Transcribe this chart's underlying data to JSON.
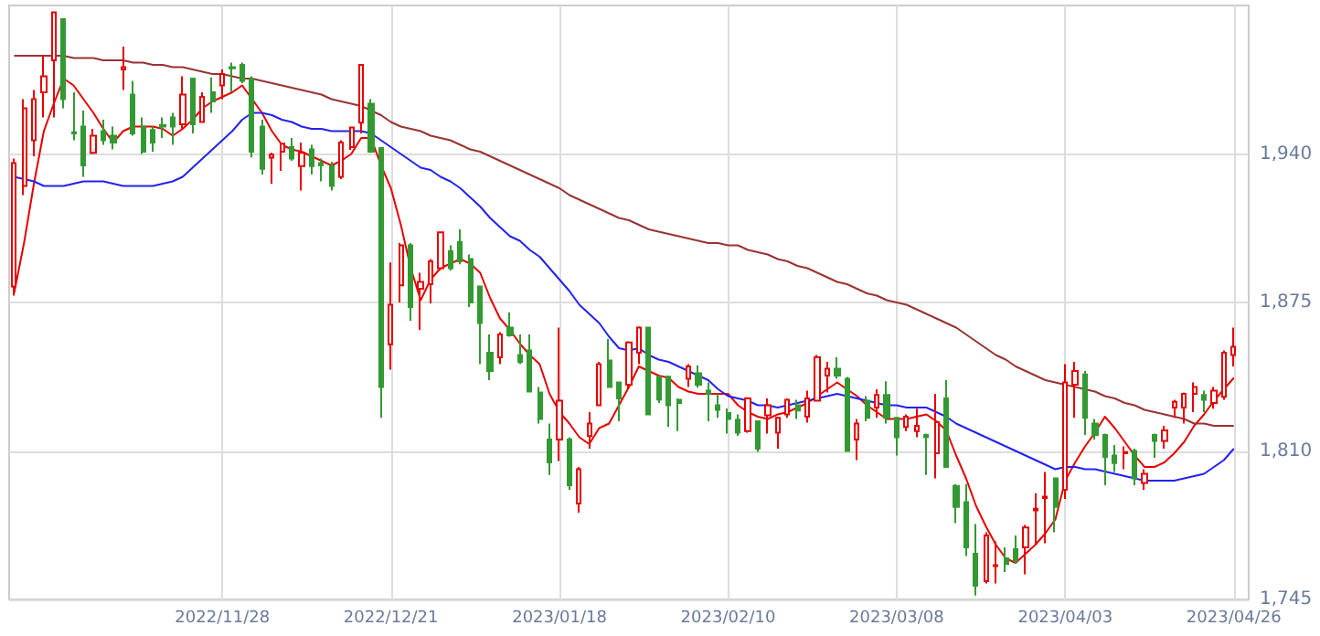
{
  "chart_data": {
    "type": "candlestick",
    "categories": [
      null,
      null,
      null,
      null,
      null,
      null,
      null,
      null,
      null,
      null,
      null,
      null,
      null,
      null,
      null,
      null,
      null,
      null,
      null,
      null,
      null,
      "2022/11/28",
      null,
      null,
      null,
      null,
      null,
      null,
      null,
      null,
      null,
      null,
      null,
      null,
      null,
      null,
      null,
      null,
      "2022/12/21",
      null,
      null,
      null,
      null,
      null,
      null,
      null,
      null,
      null,
      null,
      null,
      null,
      null,
      null,
      null,
      null,
      "2023/01/18",
      null,
      null,
      null,
      null,
      null,
      null,
      null,
      null,
      null,
      null,
      null,
      null,
      null,
      null,
      null,
      null,
      "2023/02/10",
      null,
      null,
      null,
      null,
      null,
      null,
      null,
      null,
      null,
      null,
      null,
      null,
      null,
      null,
      null,
      null,
      "2023/03/08",
      null,
      null,
      null,
      null,
      null,
      null,
      null,
      null,
      null,
      null,
      null,
      null,
      null,
      null,
      null,
      null,
      "2023/04/03",
      null,
      null,
      null,
      null,
      null,
      null,
      null,
      null,
      null,
      null,
      null,
      null,
      null,
      null,
      null,
      null,
      "2023/04/26"
    ],
    "ohlc": [
      [
        1882,
        1938,
        1878,
        1936
      ],
      [
        1926,
        1964,
        1922,
        1960
      ],
      [
        1946,
        1968,
        1939,
        1964
      ],
      [
        1967,
        1983,
        1956,
        1974
      ],
      [
        1981,
        2002,
        1956,
        2002
      ],
      [
        1999,
        1999,
        1960,
        1964
      ],
      [
        1949.5,
        1967,
        1946,
        1949
      ],
      [
        1952,
        1959,
        1930,
        1935
      ],
      [
        1940.5,
        1951,
        1940,
        1948
      ],
      [
        1950,
        1955,
        1944,
        1946
      ],
      [
        1948,
        1952,
        1942,
        1945
      ],
      [
        1977,
        1987,
        1968,
        1978
      ],
      [
        1966,
        1972,
        1948,
        1949
      ],
      [
        1952,
        1956,
        1940,
        1941
      ],
      [
        1950.5,
        1952,
        1941,
        1945
      ],
      [
        1952.7,
        1956,
        1947,
        1952
      ],
      [
        1956,
        1958,
        1944,
        1952
      ],
      [
        1953,
        1974,
        1951,
        1966
      ],
      [
        1973,
        1973,
        1949,
        1953
      ],
      [
        1954,
        1967,
        1954,
        1965
      ],
      [
        1967,
        1973.5,
        1958,
        1963
      ],
      [
        1970,
        1977,
        1964,
        1975
      ],
      [
        1978,
        1980,
        1967,
        1977.5
      ],
      [
        1979,
        1980,
        1971,
        1972
      ],
      [
        1972.7,
        1974,
        1938.5,
        1941
      ],
      [
        1952,
        1955,
        1931,
        1933.5
      ],
      [
        1938.4,
        1940.5,
        1927,
        1939.7
      ],
      [
        1941,
        1945,
        1932.6,
        1944.5
      ],
      [
        1943,
        1947,
        1937,
        1938
      ],
      [
        1934.7,
        1945,
        1924,
        1940.5
      ],
      [
        1942,
        1944,
        1931,
        1934.7
      ],
      [
        1936,
        1938,
        1928,
        1935
      ],
      [
        1934.7,
        1936.6,
        1924,
        1926
      ],
      [
        1930,
        1946,
        1929,
        1945
      ],
      [
        1943,
        1952,
        1941.8,
        1951.6
      ],
      [
        1953.7,
        1979,
        1949,
        1979
      ],
      [
        1962,
        1964,
        1940.5,
        1941
      ],
      [
        1942.6,
        1943,
        1824.5,
        1838
      ],
      [
        1856.7,
        1892.5,
        1845.6,
        1874
      ],
      [
        1882.5,
        1901,
        1875,
        1900
      ],
      [
        1900,
        1901,
        1867,
        1873
      ],
      [
        1881,
        1888,
        1863,
        1884
      ],
      [
        1883,
        1894,
        1874.6,
        1893
      ],
      [
        1890,
        1906,
        1889,
        1905.7
      ],
      [
        1897.5,
        1900,
        1889,
        1890
      ],
      [
        1901.5,
        1907,
        1891.7,
        1893
      ],
      [
        1894,
        1896,
        1873,
        1875
      ],
      [
        1882,
        1882,
        1848,
        1866
      ],
      [
        1853,
        1861,
        1841,
        1845
      ],
      [
        1851,
        1862,
        1848,
        1861
      ],
      [
        1864,
        1870.6,
        1860,
        1860.6
      ],
      [
        1852,
        1861,
        1848,
        1849
      ],
      [
        1854,
        1861,
        1836,
        1836
      ],
      [
        1835.6,
        1838,
        1822,
        1824
      ],
      [
        1815,
        1822,
        1799.5,
        1805
      ],
      [
        1815,
        1864,
        1805.6,
        1832
      ],
      [
        1815,
        1816,
        1793,
        1795
      ],
      [
        1787,
        1803,
        1783,
        1802
      ],
      [
        1816.5,
        1827,
        1811,
        1822
      ],
      [
        1830,
        1849,
        1830,
        1848
      ],
      [
        1849.6,
        1859,
        1837.7,
        1838
      ],
      [
        1840,
        1840,
        1823,
        1833
      ],
      [
        1839,
        1858,
        1837,
        1857.5
      ],
      [
        1853,
        1864.5,
        1848,
        1864
      ],
      [
        1864,
        1864,
        1826,
        1826
      ],
      [
        1842.5,
        1843,
        1831,
        1832.5
      ],
      [
        1842.5,
        1843,
        1820.5,
        1830
      ],
      [
        1832.4,
        1833,
        1818.7,
        1831
      ],
      [
        1841.6,
        1848,
        1838,
        1847
      ],
      [
        1844,
        1847.5,
        1837.7,
        1839
      ],
      [
        1836.4,
        1840,
        1823,
        1835
      ],
      [
        1830,
        1835,
        1824.5,
        1828
      ],
      [
        1826.6,
        1828.6,
        1817.6,
        1824
      ],
      [
        1823.7,
        1826,
        1816.6,
        1818
      ],
      [
        1818.7,
        1833.5,
        1818,
        1833
      ],
      [
        1823,
        1823,
        1809.6,
        1811
      ],
      [
        1825.6,
        1833,
        1817.6,
        1830
      ],
      [
        1818,
        1825,
        1811,
        1824.5
      ],
      [
        1826,
        1833,
        1824.5,
        1832.4
      ],
      [
        1830,
        1832.4,
        1824,
        1827.7
      ],
      [
        1825,
        1836.4,
        1822.4,
        1833
      ],
      [
        1832,
        1852,
        1831.6,
        1851
      ],
      [
        1843,
        1849,
        1835.6,
        1846
      ],
      [
        1846,
        1851,
        1841.6,
        1843
      ],
      [
        1841.6,
        1842.4,
        1810,
        1810
      ],
      [
        1815,
        1824,
        1806,
        1822
      ],
      [
        1832,
        1834,
        1823,
        1824.5
      ],
      [
        1829,
        1837,
        1824.5,
        1834.5
      ],
      [
        1834.5,
        1840.5,
        1822,
        1824.5
      ],
      [
        1824.5,
        1824.5,
        1808,
        1816
      ],
      [
        1820.5,
        1826,
        1818.7,
        1825
      ],
      [
        1818.7,
        1828.5,
        1816,
        1821
      ],
      [
        1817,
        1817.6,
        1799.5,
        1816
      ],
      [
        1809,
        1835,
        1798,
        1822.6
      ],
      [
        1833,
        1841,
        1803,
        1803
      ],
      [
        1794.7,
        1795.5,
        1778.4,
        1785.5
      ],
      [
        1787.6,
        1795.5,
        1764,
        1767.8
      ],
      [
        1765,
        1778,
        1746.7,
        1751
      ],
      [
        1753,
        1774.4,
        1752,
        1773
      ],
      [
        1759.6,
        1770.4,
        1752,
        1760
      ],
      [
        1763,
        1767.8,
        1757,
        1760.5
      ],
      [
        1767,
        1773,
        1760.6,
        1762
      ],
      [
        1767.8,
        1777.6,
        1756,
        1776.5
      ],
      [
        1784,
        1791.5,
        1769,
        1784.7
      ],
      [
        1789.4,
        1800.8,
        1769.6,
        1790
      ],
      [
        1798,
        1798,
        1774.4,
        1785.5
      ],
      [
        1793,
        1848,
        1789,
        1840
      ],
      [
        1839,
        1849,
        1824.5,
        1845
      ],
      [
        1843.5,
        1845,
        1817,
        1824.5
      ],
      [
        1822,
        1824,
        1815,
        1817
      ],
      [
        1817,
        1817.6,
        1795,
        1807.4
      ],
      [
        1808,
        1812.6,
        1800.8,
        1804.7
      ],
      [
        1809,
        1812,
        1802,
        1809.5
      ],
      [
        1810,
        1811,
        1795,
        1798
      ],
      [
        1796,
        1802,
        1793,
        1800
      ],
      [
        1817,
        1817.6,
        1807,
        1814.4
      ],
      [
        1814.4,
        1821,
        1811,
        1819
      ],
      [
        1829,
        1832.4,
        1824.5,
        1831.5
      ],
      [
        1829,
        1835.6,
        1822,
        1835
      ],
      [
        1835,
        1840,
        1827,
        1838
      ],
      [
        1834.5,
        1836.4,
        1827,
        1832.4
      ],
      [
        1831,
        1838,
        1828.5,
        1836.4
      ],
      [
        1833.7,
        1854,
        1832.4,
        1853
      ],
      [
        1852,
        1864,
        1847,
        1855.6
      ]
    ],
    "series": [
      {
        "type": "line",
        "color": "#e60000",
        "values": [
          1879,
          1901,
          1927,
          1950,
          1962,
          1973,
          1970,
          1964,
          1958,
          1951,
          1945,
          1950,
          1952,
          1952,
          1952,
          1951,
          1948,
          1951,
          1955,
          1960,
          1963,
          1965,
          1967,
          1970,
          1964,
          1958,
          1950,
          1944,
          1942,
          1941,
          1939,
          1937,
          1935,
          1937,
          1940,
          1947,
          1947,
          1935,
          1925,
          1909,
          1890,
          1876,
          1885,
          1890,
          1892,
          1894,
          1892,
          1888,
          1877,
          1868,
          1863,
          1857,
          1852,
          1848,
          1835,
          1827,
          1822,
          1816,
          1813,
          1820,
          1822,
          1830,
          1838,
          1847,
          1845,
          1843,
          1842,
          1838,
          1836,
          1835,
          1835,
          1835,
          1835,
          1830,
          1827,
          1825,
          1824,
          1826,
          1827,
          1829,
          1831,
          1834,
          1837,
          1840,
          1837,
          1834,
          1830,
          1827,
          1824,
          1824,
          1824,
          1825,
          1826,
          1823,
          1819,
          1808,
          1798,
          1786,
          1777,
          1769,
          1763,
          1761,
          1765,
          1769,
          1774,
          1780,
          1797,
          1805,
          1812,
          1818,
          1825,
          1820,
          1814,
          1808,
          1803,
          1803,
          1805,
          1809,
          1814,
          1821,
          1826,
          1832,
          1837,
          1842
        ]
      },
      {
        "type": "line",
        "color": "#2222ee",
        "values": [
          1930,
          1929,
          1928,
          1926,
          1926,
          1926,
          1927,
          1928,
          1928,
          1928,
          1927,
          1926,
          1926,
          1926,
          1926,
          1927,
          1928,
          1930,
          1934,
          1938,
          1942,
          1946,
          1950,
          1955,
          1958,
          1958,
          1957,
          1955,
          1954,
          1952,
          1951,
          1951,
          1950,
          1950,
          1950,
          1950,
          1949,
          1946,
          1943,
          1940,
          1937,
          1934,
          1933,
          1930,
          1928,
          1925,
          1921,
          1917,
          1912,
          1908,
          1904,
          1902,
          1898,
          1895,
          1890,
          1885,
          1880,
          1874,
          1870,
          1866,
          1860,
          1855,
          1854,
          1855,
          1852,
          1850,
          1849,
          1847,
          1845,
          1843,
          1841,
          1837,
          1834,
          1833,
          1832,
          1830,
          1830,
          1829,
          1830,
          1831,
          1832,
          1833,
          1834,
          1835,
          1834,
          1833,
          1832,
          1831,
          1830,
          1830,
          1829,
          1829,
          1829,
          1827,
          1825,
          1822,
          1820,
          1818,
          1816,
          1814,
          1812,
          1810,
          1808,
          1806,
          1804,
          1802,
          1803,
          1803,
          1802,
          1802,
          1801,
          1800,
          1799,
          1798,
          1797,
          1797,
          1797,
          1797,
          1798,
          1799,
          1800,
          1803,
          1806,
          1811
        ]
      },
      {
        "type": "line",
        "color": "#993333",
        "values": [
          1983,
          1983,
          1983,
          1983,
          1983,
          1983,
          1982,
          1982,
          1982,
          1981,
          1981,
          1981,
          1980,
          1980,
          1979,
          1979,
          1978,
          1978,
          1977,
          1976,
          1975,
          1975,
          1974,
          1973,
          1973,
          1972,
          1971,
          1970,
          1969,
          1968,
          1967,
          1966,
          1964,
          1963,
          1962,
          1961,
          1959,
          1957,
          1954,
          1952,
          1951,
          1950,
          1948,
          1947,
          1946,
          1944,
          1942,
          1941,
          1939,
          1937,
          1935,
          1933,
          1931,
          1929,
          1927,
          1925,
          1922,
          1920,
          1918,
          1916,
          1914,
          1912,
          1911,
          1909,
          1907,
          1906,
          1905,
          1904,
          1903,
          1902,
          1901,
          1901,
          1900,
          1900,
          1898,
          1897,
          1896,
          1894,
          1893,
          1891,
          1890,
          1888,
          1886,
          1884,
          1883,
          1881,
          1879,
          1878,
          1876,
          1875,
          1874,
          1872,
          1870,
          1868,
          1866,
          1864,
          1861,
          1858,
          1855,
          1852,
          1850,
          1847,
          1845,
          1843,
          1841,
          1840,
          1839,
          1838,
          1837,
          1836,
          1834,
          1833,
          1831,
          1830,
          1828,
          1827,
          1826,
          1825,
          1824,
          1822,
          1822,
          1821,
          1821,
          1821
        ]
      }
    ],
    "ylim": [
      1745,
      2005
    ],
    "yticks": [
      {
        "value": 1745,
        "label": "1,745"
      },
      {
        "value": 1810,
        "label": "1,810"
      },
      {
        "value": 1875,
        "label": "1,875"
      },
      {
        "value": 1940,
        "label": "1,940"
      }
    ],
    "grid": true,
    "marker": "none",
    "line_style": "solid"
  }
}
